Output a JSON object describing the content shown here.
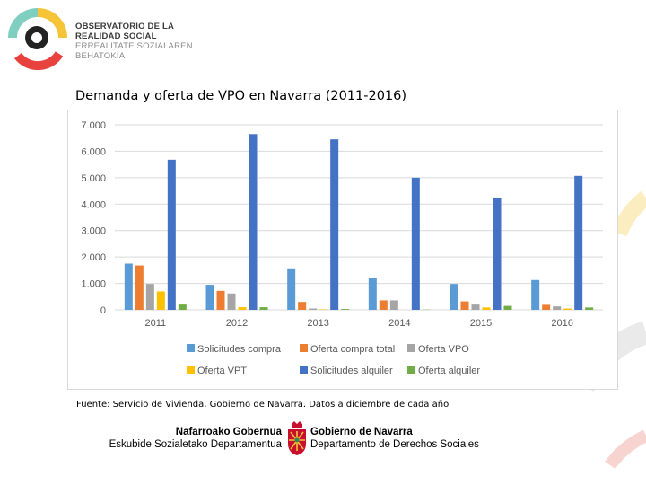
{
  "header": {
    "org_line1": "OBSERVATORIO DE LA",
    "org_line2": "REALIDAD SOCIAL",
    "org_line3": "ERREALITATE SOZIALAREN",
    "org_line4": "BEHATOKIA"
  },
  "title": "Demanda y oferta de VPO en Navarra (2011-2016)",
  "source": "Fuente: Servicio de Vivienda, Gobierno de Navarra. Datos a diciembre de cada año",
  "footer": {
    "eu_line1": "Nafarroako Gobernua",
    "eu_line2": "Eskubide Sozialetako Departamentua",
    "es_line1": "Gobierno de Navarra",
    "es_line2": "Departamento de Derechos Sociales"
  },
  "colors": {
    "logo_teal": "#7ecfc0",
    "logo_yellow": "#f5c437",
    "logo_red": "#e8423f",
    "logo_dark": "#222222",
    "navarra_red": "#c8102e"
  },
  "chart_data": {
    "type": "bar",
    "categories": [
      "2011",
      "2012",
      "2013",
      "2014",
      "2015",
      "2016"
    ],
    "series": [
      {
        "name": "Solicitudes compra",
        "color": "#5b9bd5",
        "values": [
          1750,
          950,
          1570,
          1200,
          980,
          1130
        ]
      },
      {
        "name": "Oferta compra total",
        "color": "#ed7d31",
        "values": [
          1680,
          720,
          300,
          360,
          320,
          190
        ]
      },
      {
        "name": "Oferta VPO",
        "color": "#a5a5a5",
        "values": [
          980,
          620,
          50,
          360,
          200,
          130
        ]
      },
      {
        "name": "Oferta VPT",
        "color": "#ffc000",
        "values": [
          700,
          100,
          20,
          0,
          90,
          50
        ]
      },
      {
        "name": "Solicitudes alquiler",
        "color": "#4472c4",
        "values": [
          5680,
          6650,
          6450,
          5000,
          4250,
          5070
        ]
      },
      {
        "name": "Oferta alquiler",
        "color": "#70ad47",
        "values": [
          200,
          100,
          30,
          10,
          150,
          90
        ]
      }
    ],
    "ylim": [
      0,
      7000
    ],
    "yticks": [
      0,
      1000,
      2000,
      3000,
      4000,
      5000,
      6000,
      7000
    ],
    "ytick_labels": [
      "0",
      "1.000",
      "2.000",
      "3.000",
      "4.000",
      "5.000",
      "6.000",
      "7.000"
    ],
    "grid": true,
    "legend": "bottom"
  }
}
